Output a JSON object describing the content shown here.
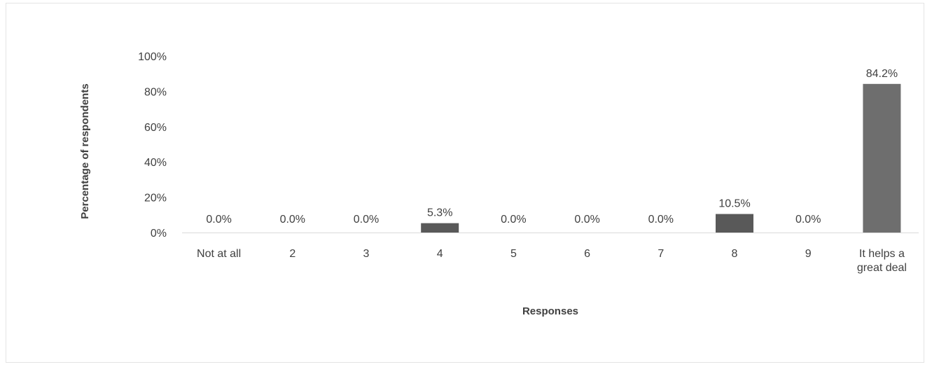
{
  "chart_data": {
    "type": "bar",
    "categories": [
      [
        "Not at all"
      ],
      [
        "2"
      ],
      [
        "3"
      ],
      [
        "4"
      ],
      [
        "5"
      ],
      [
        "6"
      ],
      [
        "7"
      ],
      [
        "8"
      ],
      [
        "9"
      ],
      [
        "It helps a",
        "great deal"
      ]
    ],
    "values": [
      0.0,
      0.0,
      0.0,
      5.3,
      0.0,
      0.0,
      0.0,
      10.5,
      0.0,
      84.2
    ],
    "value_labels": [
      "0.0%",
      "0.0%",
      "0.0%",
      "5.3%",
      "0.0%",
      "0.0%",
      "0.0%",
      "10.5%",
      "0.0%",
      "84.2%"
    ],
    "xlabel": "Responses",
    "ylabel": "Percentage of respondents",
    "ylim": [
      0,
      100
    ],
    "yticks": [
      0,
      20,
      40,
      60,
      80,
      100
    ],
    "ytick_labels": [
      "0%",
      "20%",
      "40%",
      "60%",
      "80%",
      "100%"
    ],
    "grid": false,
    "legend": "none",
    "colors": {
      "bar": "#595959",
      "bar_highlight": "#6e6e6e",
      "axis": "#d9d9d9",
      "text": "#404040"
    }
  }
}
